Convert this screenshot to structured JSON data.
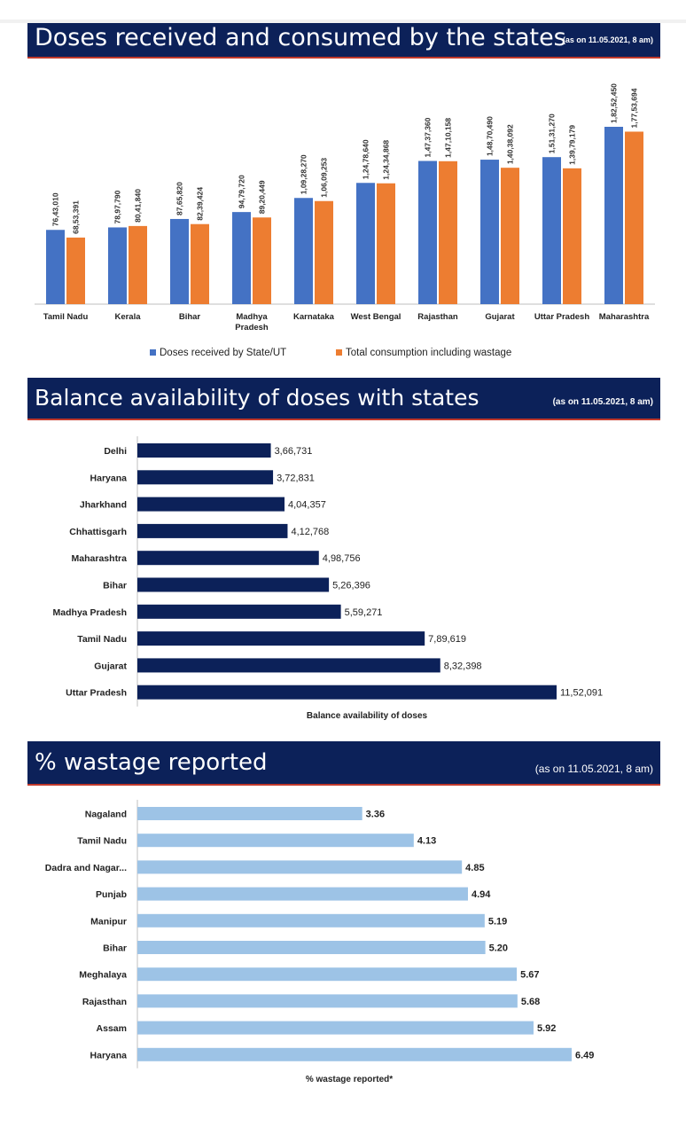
{
  "panels": {
    "doses": {
      "title": "Doses received and consumed by the states",
      "as_of": "(as on 11.05.2021, 8 am)"
    },
    "balance": {
      "title": "Balance availability of doses with states",
      "as_of": "(as on 11.05.2021, 8 am)"
    },
    "wastage": {
      "title": "% wastage reported",
      "as_of": "(as on 11.05.2021, 8 am)"
    }
  },
  "colors": {
    "banner": "#0c2159",
    "received": "#4472c4",
    "consumed": "#ed7d31",
    "balance_bar": "#0c2159",
    "wastage_bar": "#9dc3e6"
  },
  "chart_data": [
    {
      "type": "bar",
      "title": "Doses received and consumed by the states",
      "categories": [
        "Tamil Nadu",
        "Kerala",
        "Bihar",
        "Madhya Pradesh",
        "Karnataka",
        "West Bengal",
        "Rajasthan",
        "Gujarat",
        "Uttar Pradesh",
        "Maharashtra"
      ],
      "series": [
        {
          "name": "Doses received by State/UT",
          "values": [
            7643010,
            7897790,
            8765820,
            9479720,
            10928270,
            12478640,
            14737360,
            14870490,
            15131270,
            18252450
          ],
          "labels": [
            "76,43,010",
            "78,97,790",
            "87,65,820",
            "94,79,720",
            "1,09,28,270",
            "1,24,78,640",
            "1,47,37,360",
            "1,48,70,490",
            "1,51,31,270",
            "1,82,52,450"
          ]
        },
        {
          "name": "Total consumption including wastage",
          "values": [
            6853391,
            8041840,
            8239424,
            8920449,
            10609253,
            12434868,
            14710158,
            14038092,
            13979179,
            17753694
          ],
          "labels": [
            "68,53,391",
            "80,41,840",
            "82,39,424",
            "89,20,449",
            "1,06,09,253",
            "1,24,34,868",
            "1,47,10,158",
            "1,40,38,092",
            "1,39,79,179",
            "1,77,53,694"
          ]
        }
      ],
      "legend": "bottom",
      "grid": false
    },
    {
      "type": "bar",
      "orientation": "horizontal",
      "title": "Balance availability of doses with states",
      "xlabel": "Balance availability of doses",
      "categories": [
        "Delhi",
        "Haryana",
        "Jharkhand",
        "Chhattisgarh",
        "Maharashtra",
        "Bihar",
        "Madhya Pradesh",
        "Tamil Nadu",
        "Gujarat",
        "Uttar Pradesh"
      ],
      "values": [
        366731,
        372831,
        404357,
        412768,
        498756,
        526396,
        559271,
        789619,
        832398,
        1152091
      ],
      "labels": [
        "3,66,731",
        "3,72,831",
        "4,04,357",
        "4,12,768",
        "4,98,756",
        "5,26,396",
        "5,59,271",
        "7,89,619",
        "8,32,398",
        "11,52,091"
      ],
      "grid": false
    },
    {
      "type": "bar",
      "orientation": "horizontal",
      "title": "% wastage reported",
      "xlabel": "% wastage reported*",
      "categories": [
        "Nagaland",
        "Tamil Nadu",
        "Dadra and Nagar...",
        "Punjab",
        "Manipur",
        "Bihar",
        "Meghalaya",
        "Rajasthan",
        "Assam",
        "Haryana"
      ],
      "values": [
        3.36,
        4.13,
        4.85,
        4.94,
        5.19,
        5.2,
        5.67,
        5.68,
        5.92,
        6.49
      ],
      "labels": [
        "3.36",
        "4.13",
        "4.85",
        "4.94",
        "5.19",
        "5.20",
        "5.67",
        "5.68",
        "5.92",
        "6.49"
      ],
      "grid": false
    }
  ]
}
